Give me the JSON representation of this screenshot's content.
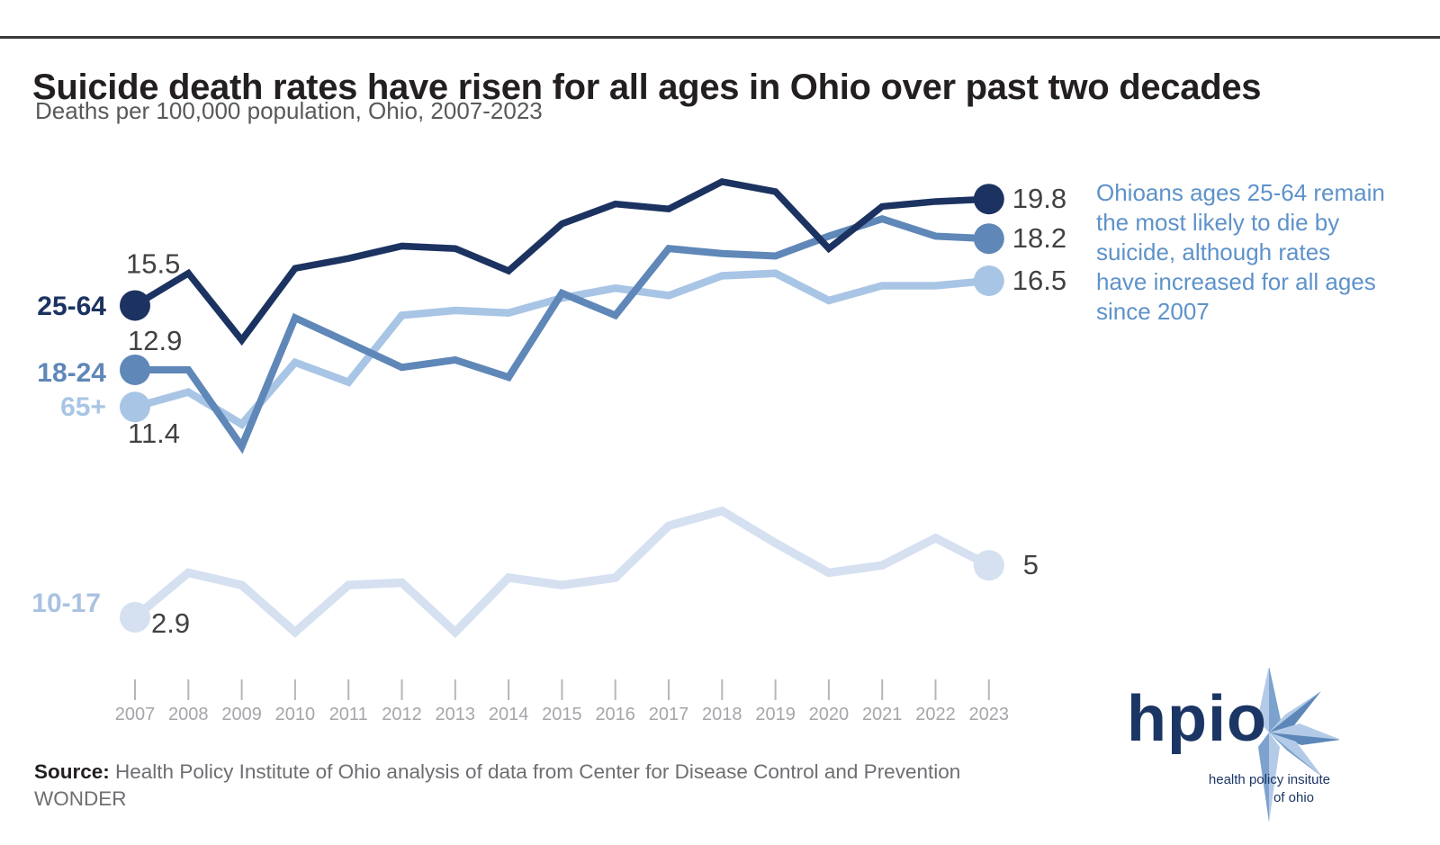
{
  "page": {
    "annotation": "Ohioans ages 25-64 remain the most likely to die by suicide, although rates have increased for all ages since 2007",
    "source_label": "Source:",
    "source_text": " Health Policy Institute of Ohio analysis of data from Center for Disease Control and Prevention WONDER"
  },
  "logo": {
    "wordmark": "hpio",
    "subtext_line1": "health policy insitute",
    "subtext_line2": "of ohio"
  },
  "colors": {
    "title_text": "#231f20",
    "subtitle_text": "#58595b",
    "annotation_text": "#5e92c9",
    "axis_gray": "#a4a6a9",
    "value_label_text": "#414144",
    "logo_navy": "#1b3564"
  },
  "chart_data": {
    "type": "line",
    "title": "Suicide death rates have risen for all ages in Ohio over past two decades",
    "subtitle": "Deaths per 100,000 population, Ohio, 2007-2023",
    "x": [
      2007,
      2008,
      2009,
      2010,
      2011,
      2012,
      2013,
      2014,
      2015,
      2016,
      2017,
      2018,
      2019,
      2020,
      2021,
      2022,
      2023
    ],
    "x_tick_labels": [
      "2007",
      "2008",
      "2009",
      "2010",
      "2011",
      "2012",
      "2013",
      "2014",
      "2015",
      "2016",
      "2017",
      "2018",
      "2019",
      "2020",
      "2021",
      "2022",
      "2023"
    ],
    "ylabel": "Deaths per 100,000 population",
    "ylim": [
      0,
      22
    ],
    "grid": false,
    "legend_position": "inline-left-of-first-point",
    "value_labels_shown": [
      "first",
      "last"
    ],
    "series": [
      {
        "name": "25-64",
        "color": "#1c3361",
        "start_label": "15.5",
        "end_label": "19.8",
        "values": [
          15.5,
          16.8,
          14.1,
          17.0,
          17.4,
          17.9,
          17.8,
          16.9,
          18.8,
          19.6,
          19.4,
          20.5,
          20.1,
          17.8,
          19.5,
          19.7,
          19.8
        ]
      },
      {
        "name": "18-24",
        "color": "#5f87b8",
        "start_label": "12.9",
        "end_label": "18.2",
        "values": [
          12.9,
          12.9,
          9.8,
          15.0,
          14.0,
          13.0,
          13.3,
          12.6,
          16.0,
          15.1,
          17.8,
          17.6,
          17.5,
          18.3,
          19.0,
          18.3,
          18.2
        ]
      },
      {
        "name": "65+",
        "color": "#a9c5e5",
        "start_label": "11.4",
        "end_label": "16.5",
        "values": [
          11.4,
          12.0,
          10.7,
          13.2,
          12.4,
          15.1,
          15.3,
          15.2,
          15.8,
          16.2,
          15.9,
          16.7,
          16.8,
          15.7,
          16.3,
          16.3,
          16.5
        ]
      },
      {
        "name": "10-17",
        "color": "#d5e0f1",
        "label_color": "#a9c2e1",
        "start_label": "2.9",
        "end_label": "5",
        "values": [
          2.9,
          4.7,
          4.2,
          2.3,
          4.2,
          4.3,
          2.3,
          4.5,
          4.2,
          4.5,
          6.6,
          7.2,
          5.9,
          4.7,
          5.0,
          6.1,
          5.0
        ]
      }
    ]
  }
}
